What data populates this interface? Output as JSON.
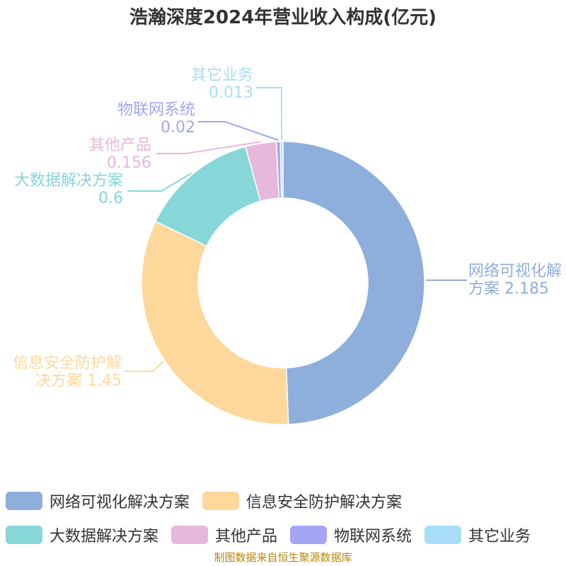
{
  "chart_data": {
    "type": "pie",
    "title": "浩瀚深度2024年营业收入构成(亿元)",
    "donut": true,
    "legend_position": "bottom",
    "categories": [
      "网络可视化解决方案",
      "信息安全防护解决方案",
      "大数据解决方案",
      "其他产品",
      "物联网系统",
      "其它业务"
    ],
    "values": [
      2.185,
      1.45,
      0.6,
      0.156,
      0.02,
      0.013
    ],
    "value_labels": [
      "2.185",
      "1.45",
      "0.6",
      "0.156",
      "0.02",
      "0.013"
    ],
    "colors": [
      "#8eaedb",
      "#fed89b",
      "#87d6d8",
      "#e8b8da",
      "#a3a6f3",
      "#a8def7"
    ]
  },
  "source_note": "制图数据来自恒生聚源数据库"
}
